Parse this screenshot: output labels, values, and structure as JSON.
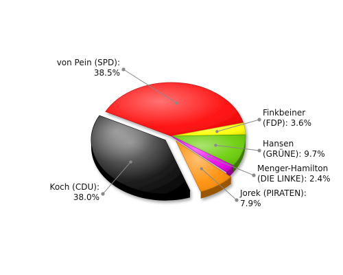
{
  "chart_data": {
    "type": "pie",
    "title": "",
    "legend": "none",
    "slices": [
      {
        "label_line1": "von Pein (SPD):",
        "label_line2": "38.5%",
        "name": "von Pein (SPD)",
        "value": 38.5,
        "color": "#ff0000",
        "exploded": false
      },
      {
        "label_line1": "Finkbeiner",
        "label_line2": "(FDP): 3.6%",
        "name": "Finkbeiner (FDP)",
        "value": 3.6,
        "color": "#ffff00",
        "exploded": false
      },
      {
        "label_line1": "Hansen",
        "label_line2": "(GRÜNE): 9.7%",
        "name": "Hansen (GRÜNE)",
        "value": 9.7,
        "color": "#66cc00",
        "exploded": false
      },
      {
        "label_line1": "Menger-Hamilton",
        "label_line2": "(DIE LINKE): 2.4%",
        "name": "Menger-Hamilton (DIE LINKE)",
        "value": 2.4,
        "color": "#ee00ee",
        "exploded": false
      },
      {
        "label_line1": "Jorek (PIRATEN):",
        "label_line2": "7.9%",
        "name": "Jorek (PIRATEN)",
        "value": 7.9,
        "color": "#ff8c00",
        "exploded": true
      },
      {
        "label_line1": "Koch (CDU):",
        "label_line2": "38.0%",
        "name": "Koch (CDU)",
        "value": 38.0,
        "color": "#000000",
        "exploded": true
      }
    ]
  }
}
